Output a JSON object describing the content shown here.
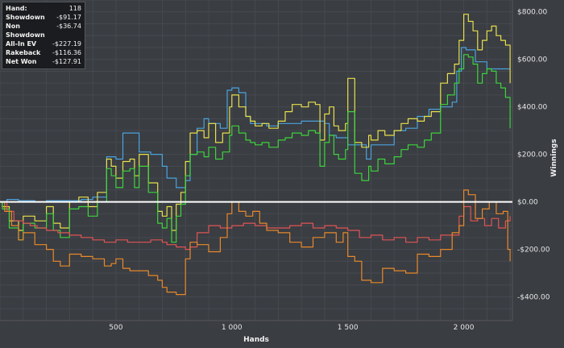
{
  "summary": {
    "rows": [
      {
        "label": "Hand:",
        "value": "118"
      },
      {
        "label": "Showdown",
        "value": "-$91.17"
      },
      {
        "label": "Non Showdown",
        "value": "-$36.74"
      },
      {
        "label": "All-In EV",
        "value": "-$227.19"
      },
      {
        "label": "Rakeback",
        "value": "-$116.36"
      },
      {
        "label": "Net Won",
        "value": "-$127.91"
      }
    ]
  },
  "chart_data": {
    "type": "line",
    "xlabel": "Hands",
    "ylabel": "Winnings",
    "xlim": [
      0,
      2210
    ],
    "ylim": [
      -500,
      850
    ],
    "x_ticks": [
      500,
      1000,
      1500,
      2000
    ],
    "x_tick_labels": [
      "500",
      "1 000",
      "1 500",
      "2 000"
    ],
    "y_ticks": [
      800,
      600,
      400,
      200,
      0,
      -200,
      -400
    ],
    "y_tick_labels": [
      "$800.00",
      "$600.00",
      "$400.00",
      "$200.00",
      "$0.00",
      "-$200.00",
      "-$400.00"
    ],
    "grid": true,
    "zero_line": true,
    "background": "#3a3d42",
    "series": [
      {
        "color": "#4aa3df",
        "x": [
          0,
          30,
          80,
          150,
          200,
          250,
          300,
          350,
          400,
          460,
          500,
          530,
          560,
          600,
          650,
          680,
          700,
          720,
          760,
          800,
          820,
          850,
          880,
          900,
          950,
          980,
          1000,
          1030,
          1060,
          1080,
          1120,
          1150,
          1200,
          1250,
          1300,
          1350,
          1400,
          1420,
          1450,
          1500,
          1550,
          1580,
          1600,
          1650,
          1700,
          1750,
          1800,
          1850,
          1900,
          1950,
          1970,
          1990,
          2010,
          2050,
          2100,
          2150,
          2200
        ],
        "y": [
          0,
          10,
          5,
          0,
          5,
          5,
          5,
          10,
          20,
          190,
          180,
          290,
          290,
          210,
          200,
          200,
          150,
          100,
          60,
          90,
          200,
          310,
          350,
          330,
          310,
          470,
          480,
          460,
          360,
          330,
          330,
          320,
          330,
          330,
          340,
          340,
          330,
          280,
          270,
          240,
          240,
          180,
          240,
          240,
          300,
          310,
          360,
          390,
          400,
          420,
          550,
          650,
          640,
          590,
          560,
          560,
          560
        ]
      },
      {
        "color": "#e8e04a",
        "x": [
          0,
          10,
          40,
          80,
          100,
          150,
          200,
          230,
          260,
          300,
          340,
          380,
          420,
          460,
          480,
          500,
          530,
          560,
          580,
          600,
          640,
          680,
          700,
          720,
          740,
          760,
          780,
          800,
          820,
          850,
          880,
          900,
          930,
          960,
          990,
          1000,
          1030,
          1060,
          1080,
          1100,
          1130,
          1160,
          1200,
          1230,
          1260,
          1300,
          1330,
          1360,
          1380,
          1400,
          1420,
          1440,
          1460,
          1490,
          1500,
          1530,
          1560,
          1590,
          1600,
          1630,
          1660,
          1700,
          1730,
          1760,
          1800,
          1830,
          1860,
          1900,
          1930,
          1960,
          1980,
          2000,
          2020,
          2040,
          2060,
          2080,
          2100,
          2120,
          2140,
          2160,
          2180,
          2200
        ],
        "y": [
          0,
          -20,
          -80,
          -120,
          -60,
          -80,
          -20,
          -90,
          -110,
          0,
          20,
          -20,
          40,
          180,
          150,
          100,
          170,
          180,
          110,
          200,
          80,
          -40,
          -60,
          -20,
          -120,
          -10,
          40,
          170,
          290,
          300,
          270,
          330,
          250,
          290,
          400,
          450,
          400,
          360,
          340,
          320,
          330,
          310,
          340,
          380,
          410,
          400,
          420,
          410,
          260,
          370,
          400,
          320,
          300,
          330,
          520,
          250,
          230,
          280,
          260,
          300,
          280,
          300,
          330,
          350,
          340,
          360,
          380,
          500,
          540,
          580,
          680,
          790,
          760,
          720,
          640,
          680,
          720,
          740,
          700,
          680,
          660,
          500
        ]
      },
      {
        "color": "#3cd43c",
        "x": [
          0,
          10,
          40,
          80,
          100,
          150,
          200,
          230,
          260,
          300,
          340,
          380,
          420,
          460,
          480,
          500,
          530,
          560,
          580,
          600,
          640,
          680,
          700,
          720,
          740,
          760,
          780,
          800,
          820,
          850,
          880,
          900,
          930,
          960,
          990,
          1000,
          1030,
          1060,
          1080,
          1100,
          1130,
          1160,
          1200,
          1230,
          1260,
          1300,
          1330,
          1360,
          1380,
          1400,
          1420,
          1440,
          1460,
          1490,
          1500,
          1530,
          1560,
          1590,
          1600,
          1630,
          1660,
          1700,
          1730,
          1760,
          1800,
          1830,
          1860,
          1900,
          1930,
          1960,
          1980,
          2000,
          2020,
          2040,
          2060,
          2080,
          2100,
          2120,
          2140,
          2160,
          2180,
          2200
        ],
        "y": [
          0,
          -30,
          -110,
          -160,
          -90,
          -110,
          -50,
          -120,
          -150,
          -30,
          -20,
          -60,
          0,
          140,
          110,
          60,
          130,
          140,
          60,
          150,
          40,
          -90,
          -110,
          -70,
          -170,
          -60,
          -10,
          110,
          200,
          210,
          190,
          230,
          180,
          210,
          280,
          320,
          290,
          260,
          250,
          240,
          250,
          230,
          260,
          270,
          290,
          280,
          300,
          290,
          150,
          250,
          280,
          200,
          180,
          220,
          380,
          120,
          90,
          150,
          130,
          180,
          160,
          190,
          220,
          240,
          230,
          260,
          290,
          410,
          450,
          500,
          560,
          620,
          610,
          580,
          500,
          540,
          560,
          550,
          500,
          480,
          440,
          310
        ]
      },
      {
        "color": "#e05555",
        "x": [
          0,
          30,
          60,
          100,
          130,
          160,
          200,
          250,
          300,
          350,
          400,
          450,
          500,
          550,
          600,
          650,
          700,
          720,
          760,
          800,
          820,
          850,
          900,
          950,
          1000,
          1050,
          1100,
          1150,
          1200,
          1250,
          1300,
          1350,
          1400,
          1450,
          1500,
          1550,
          1600,
          1650,
          1700,
          1750,
          1800,
          1850,
          1900,
          1950,
          1980,
          2000,
          2030,
          2060,
          2090,
          2120,
          2150,
          2180,
          2200
        ],
        "y": [
          0,
          -40,
          -80,
          -90,
          -100,
          -110,
          -120,
          -130,
          -140,
          -150,
          -160,
          -170,
          -160,
          -170,
          -170,
          -160,
          -170,
          -180,
          -190,
          -200,
          -190,
          -130,
          -100,
          -110,
          -100,
          -90,
          -100,
          -110,
          -110,
          -100,
          -90,
          -110,
          -100,
          -110,
          -120,
          -150,
          -140,
          -160,
          -150,
          -170,
          -150,
          -160,
          -140,
          -140,
          -60,
          -20,
          -80,
          -70,
          -100,
          -70,
          -110,
          -80,
          -60
        ]
      },
      {
        "color": "#e8892a",
        "x": [
          0,
          20,
          50,
          80,
          100,
          150,
          200,
          230,
          260,
          300,
          350,
          400,
          450,
          480,
          500,
          530,
          560,
          600,
          640,
          680,
          700,
          720,
          760,
          800,
          820,
          850,
          900,
          950,
          980,
          1000,
          1030,
          1060,
          1090,
          1120,
          1150,
          1200,
          1250,
          1300,
          1350,
          1400,
          1450,
          1480,
          1500,
          1530,
          1560,
          1600,
          1650,
          1700,
          1750,
          1800,
          1850,
          1900,
          1950,
          1980,
          2000,
          2020,
          2050,
          2080,
          2110,
          2140,
          2170,
          2190,
          2200
        ],
        "y": [
          0,
          -40,
          -100,
          -160,
          -130,
          -180,
          -200,
          -250,
          -270,
          -220,
          -230,
          -240,
          -270,
          -260,
          -240,
          -280,
          -290,
          -290,
          -310,
          -330,
          -360,
          -380,
          -390,
          -240,
          -170,
          -180,
          -210,
          -150,
          -50,
          0,
          -40,
          -60,
          -40,
          -90,
          -120,
          -130,
          -170,
          -190,
          -150,
          -130,
          -170,
          -130,
          -230,
          -250,
          -330,
          -340,
          -280,
          -290,
          -300,
          -220,
          -230,
          -200,
          -130,
          -100,
          50,
          30,
          -70,
          -30,
          0,
          -50,
          -40,
          -200,
          -250
        ]
      }
    ]
  }
}
